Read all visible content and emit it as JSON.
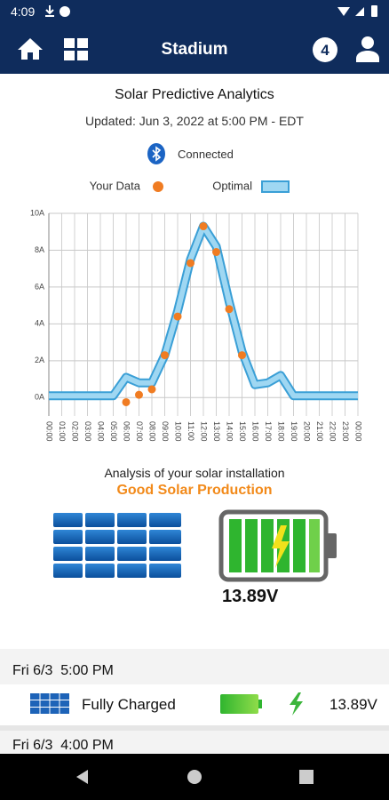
{
  "status_bar": {
    "time": "4:09"
  },
  "header": {
    "title": "Stadium",
    "badge": "4"
  },
  "report": {
    "title": "Solar Predictive Analytics",
    "updated": "Updated: Jun 3, 2022 at 5:00 PM - EDT",
    "connection": "Connected"
  },
  "chart_data": {
    "type": "line",
    "categories": [
      "00:00",
      "01:00",
      "02:00",
      "03:00",
      "04:00",
      "05:00",
      "06:00",
      "07:00",
      "08:00",
      "09:00",
      "10:00",
      "11:00",
      "12:00",
      "13:00",
      "14:00",
      "15:00",
      "16:00",
      "17:00",
      "18:00",
      "19:00",
      "20:00",
      "21:00",
      "22:00",
      "23:00",
      "00:00"
    ],
    "series": [
      {
        "name": "Your Data",
        "color": "#f07c22",
        "values": [
          null,
          null,
          null,
          null,
          null,
          null,
          -0.25,
          0.15,
          0.45,
          2.3,
          4.4,
          7.3,
          9.3,
          7.9,
          4.8,
          2.3,
          null,
          null,
          null,
          null,
          null,
          null,
          null,
          null,
          null
        ]
      },
      {
        "name": "Optimal",
        "color": "#9fd7f2",
        "values": [
          0.1,
          0.1,
          0.1,
          0.1,
          0.1,
          0.1,
          1.1,
          0.8,
          0.8,
          2.3,
          4.7,
          7.5,
          9.3,
          8.2,
          5.2,
          2.5,
          0.7,
          0.8,
          1.2,
          0.1,
          0.1,
          0.1,
          0.1,
          0.1,
          0.1
        ]
      }
    ],
    "ylim": [
      -1,
      10
    ],
    "yticks": [
      {
        "value": 0,
        "label": "0A"
      },
      {
        "value": 2,
        "label": "2A"
      },
      {
        "value": 4,
        "label": "4A"
      },
      {
        "value": 6,
        "label": "6A"
      },
      {
        "value": 8,
        "label": "8A"
      },
      {
        "value": 10,
        "label": "10A"
      }
    ],
    "grid": true
  },
  "analysis": {
    "caption": "Analysis of your solar installation",
    "status": "Good Solar Production",
    "voltage": "13.89V"
  },
  "log": [
    {
      "time": "Fri 6/3  5:00 PM",
      "status": "Fully Charged",
      "voltage": "13.89V"
    },
    {
      "time": "Fri 6/3  4:00 PM"
    }
  ]
}
